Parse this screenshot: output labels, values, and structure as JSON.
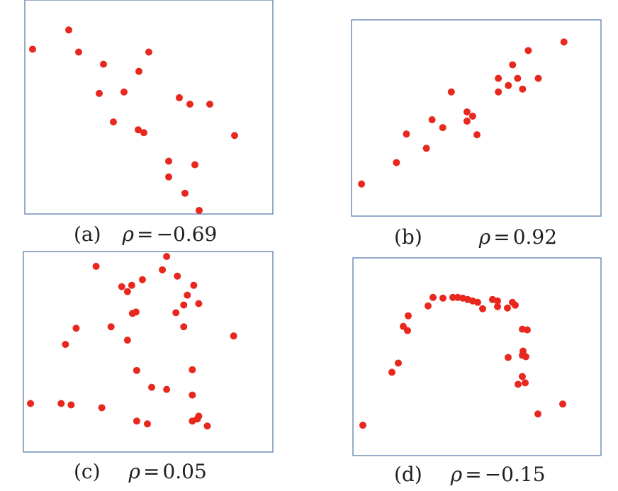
{
  "chart_data": [
    {
      "type": "scatter",
      "label": "(a)",
      "rho_symbol": "ρ",
      "equals": "=",
      "rho_value": "−0.69",
      "xlim": [
        0,
        350
      ],
      "ylim": [
        0,
        300
      ],
      "points": [
        {
          "x": 11,
          "y": 231
        },
        {
          "x": 62,
          "y": 258
        },
        {
          "x": 76,
          "y": 227
        },
        {
          "x": 111,
          "y": 210
        },
        {
          "x": 105,
          "y": 169
        },
        {
          "x": 140,
          "y": 171
        },
        {
          "x": 161,
          "y": 200
        },
        {
          "x": 175,
          "y": 227
        },
        {
          "x": 125,
          "y": 129
        },
        {
          "x": 160,
          "y": 118
        },
        {
          "x": 168,
          "y": 114
        },
        {
          "x": 218,
          "y": 163
        },
        {
          "x": 233,
          "y": 154
        },
        {
          "x": 261,
          "y": 154
        },
        {
          "x": 296,
          "y": 110
        },
        {
          "x": 203,
          "y": 74
        },
        {
          "x": 240,
          "y": 69
        },
        {
          "x": 203,
          "y": 52
        },
        {
          "x": 226,
          "y": 29
        },
        {
          "x": 246,
          "y": 5
        }
      ]
    },
    {
      "type": "scatter",
      "label": "(b)",
      "rho_symbol": "ρ",
      "equals": "=",
      "rho_value": "0.92",
      "xlim": [
        0,
        350
      ],
      "ylim": [
        0,
        275
      ],
      "points": [
        {
          "x": 14,
          "y": 45
        },
        {
          "x": 63,
          "y": 75
        },
        {
          "x": 77,
          "y": 115
        },
        {
          "x": 105,
          "y": 95
        },
        {
          "x": 113,
          "y": 135
        },
        {
          "x": 128,
          "y": 124
        },
        {
          "x": 140,
          "y": 174
        },
        {
          "x": 162,
          "y": 146
        },
        {
          "x": 170,
          "y": 140
        },
        {
          "x": 162,
          "y": 133
        },
        {
          "x": 176,
          "y": 114
        },
        {
          "x": 206,
          "y": 174
        },
        {
          "x": 206,
          "y": 193
        },
        {
          "x": 220,
          "y": 183
        },
        {
          "x": 226,
          "y": 212
        },
        {
          "x": 233,
          "y": 193
        },
        {
          "x": 240,
          "y": 178
        },
        {
          "x": 248,
          "y": 232
        },
        {
          "x": 262,
          "y": 193
        },
        {
          "x": 298,
          "y": 244
        }
      ]
    },
    {
      "type": "scatter",
      "label": "(c)",
      "rho_symbol": "ρ",
      "equals": "=",
      "rho_value": "0.05",
      "xlim": [
        0,
        350
      ],
      "ylim": [
        0,
        285
      ],
      "points": [
        {
          "x": 102,
          "y": 264
        },
        {
          "x": 138,
          "y": 235
        },
        {
          "x": 146,
          "y": 228
        },
        {
          "x": 152,
          "y": 237
        },
        {
          "x": 167,
          "y": 245
        },
        {
          "x": 195,
          "y": 259
        },
        {
          "x": 201,
          "y": 278
        },
        {
          "x": 216,
          "y": 250
        },
        {
          "x": 239,
          "y": 237
        },
        {
          "x": 230,
          "y": 223
        },
        {
          "x": 225,
          "y": 209
        },
        {
          "x": 214,
          "y": 198
        },
        {
          "x": 246,
          "y": 211
        },
        {
          "x": 153,
          "y": 197
        },
        {
          "x": 158,
          "y": 199
        },
        {
          "x": 123,
          "y": 178
        },
        {
          "x": 74,
          "y": 176
        },
        {
          "x": 59,
          "y": 153
        },
        {
          "x": 146,
          "y": 159
        },
        {
          "x": 225,
          "y": 178
        },
        {
          "x": 295,
          "y": 165
        },
        {
          "x": 159,
          "y": 116
        },
        {
          "x": 237,
          "y": 117
        },
        {
          "x": 180,
          "y": 92
        },
        {
          "x": 201,
          "y": 89
        },
        {
          "x": 237,
          "y": 81
        },
        {
          "x": 10,
          "y": 69
        },
        {
          "x": 53,
          "y": 69
        },
        {
          "x": 67,
          "y": 67
        },
        {
          "x": 110,
          "y": 63
        },
        {
          "x": 159,
          "y": 44
        },
        {
          "x": 174,
          "y": 40
        },
        {
          "x": 237,
          "y": 44
        },
        {
          "x": 244,
          "y": 47
        },
        {
          "x": 246,
          "y": 51
        },
        {
          "x": 258,
          "y": 37
        }
      ]
    },
    {
      "type": "scatter",
      "label": "(d)",
      "rho_symbol": "ρ",
      "equals": "=",
      "rho_value": "−0.15",
      "xlim": [
        0,
        350
      ],
      "ylim": [
        0,
        280
      ],
      "points": [
        {
          "x": 14,
          "y": 43
        },
        {
          "x": 55,
          "y": 118
        },
        {
          "x": 64,
          "y": 131
        },
        {
          "x": 71,
          "y": 183
        },
        {
          "x": 77,
          "y": 177
        },
        {
          "x": 78,
          "y": 198
        },
        {
          "x": 106,
          "y": 212
        },
        {
          "x": 113,
          "y": 224
        },
        {
          "x": 127,
          "y": 223
        },
        {
          "x": 141,
          "y": 224
        },
        {
          "x": 148,
          "y": 224
        },
        {
          "x": 155,
          "y": 223
        },
        {
          "x": 162,
          "y": 221
        },
        {
          "x": 169,
          "y": 219
        },
        {
          "x": 176,
          "y": 217
        },
        {
          "x": 183,
          "y": 208
        },
        {
          "x": 197,
          "y": 221
        },
        {
          "x": 204,
          "y": 219
        },
        {
          "x": 204,
          "y": 211
        },
        {
          "x": 218,
          "y": 209
        },
        {
          "x": 225,
          "y": 217
        },
        {
          "x": 229,
          "y": 213
        },
        {
          "x": 239,
          "y": 179
        },
        {
          "x": 246,
          "y": 178
        },
        {
          "x": 219,
          "y": 139
        },
        {
          "x": 239,
          "y": 142
        },
        {
          "x": 240,
          "y": 148
        },
        {
          "x": 244,
          "y": 140
        },
        {
          "x": 239,
          "y": 112
        },
        {
          "x": 233,
          "y": 101
        },
        {
          "x": 243,
          "y": 103
        },
        {
          "x": 261,
          "y": 59
        },
        {
          "x": 296,
          "y": 73
        }
      ]
    }
  ],
  "colors": {
    "point": "#e8281f",
    "frame": "#5b7fae"
  }
}
